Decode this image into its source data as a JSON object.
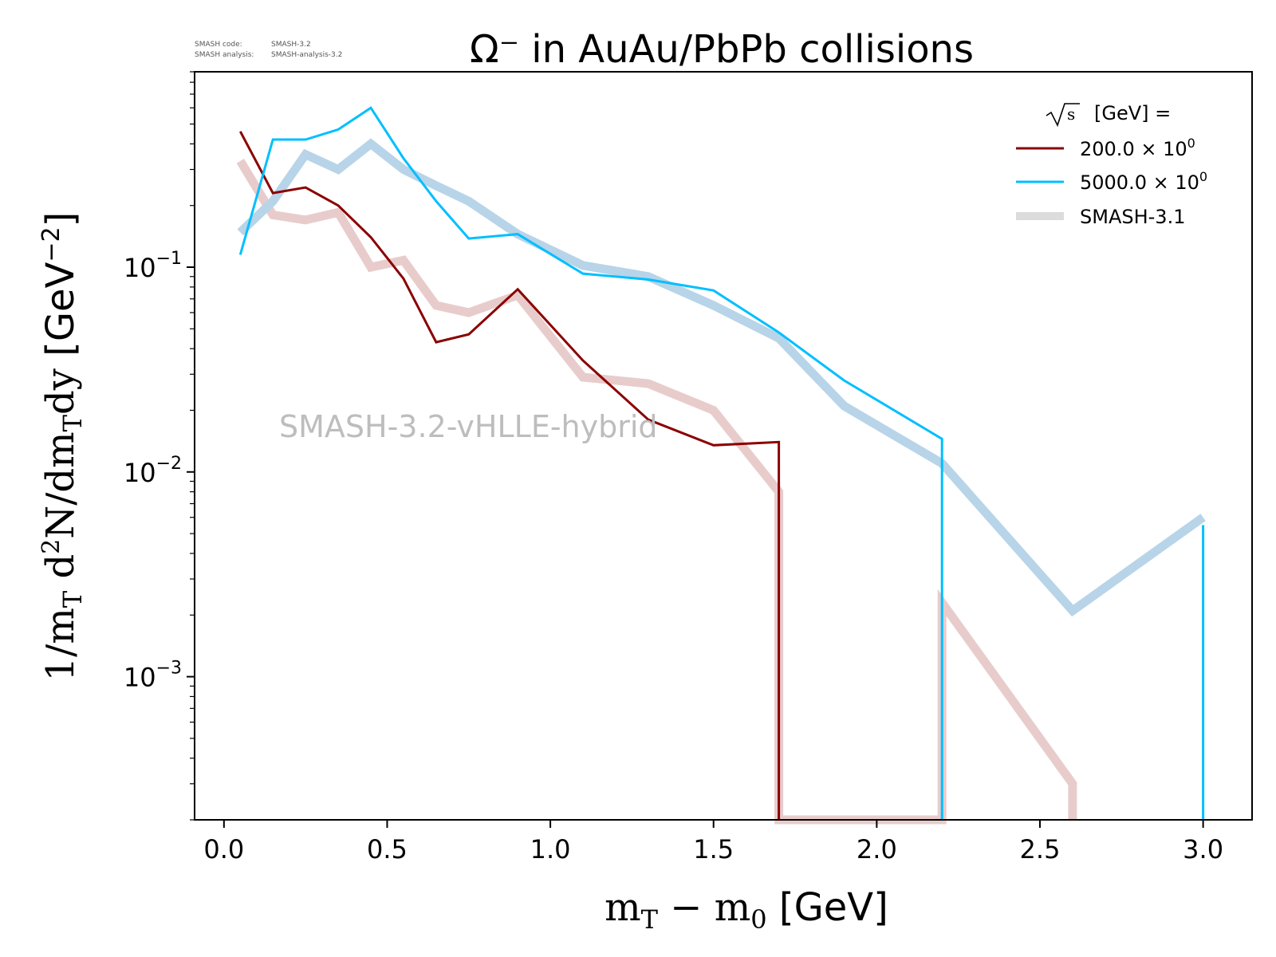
{
  "meta": {
    "code_label": "SMASH code:",
    "code_value": "SMASH-3.2",
    "analysis_label": "SMASH analysis:",
    "analysis_value": "SMASH-analysis-3.2"
  },
  "watermark": "SMASH-3.2-vHLLE-hybrid",
  "colors": {
    "series_200": "#8b0000",
    "series_5000": "#00bfff",
    "ref_200": "#e8cccc",
    "ref_5000": "#b8d4e8",
    "legend_ref": "#dcdcdc"
  },
  "chart_data": {
    "type": "line",
    "title": "Ω⁻ in AuAu/PbPb collisions",
    "xlabel": "m_T − m_0 [GeV]",
    "ylabel": "1/m_T d²N/dm_Tdy [GeV⁻²]",
    "xlim": [
      -0.09,
      3.15
    ],
    "ylim": [
      0.0002,
      0.9
    ],
    "yscale": "log",
    "grid": false,
    "legend_placement": "top-right",
    "legend_title": "√s [GeV] =",
    "x_ticks": [
      "0.0",
      "0.5",
      "1.0",
      "1.5",
      "2.0",
      "2.5",
      "3.0"
    ],
    "y_ticks": [
      {
        "base": "10",
        "exp": "−1",
        "value": 0.1
      },
      {
        "base": "10",
        "exp": "−2",
        "value": 0.01
      },
      {
        "base": "10",
        "exp": "−3",
        "value": 0.001
      }
    ],
    "series": [
      {
        "name": "200.0 × 10⁰",
        "legend_base": "200.0 × 10",
        "legend_exp": "0",
        "color": "#8b0000",
        "x": [
          0.05,
          0.15,
          0.25,
          0.35,
          0.45,
          0.55,
          0.65,
          0.75,
          0.9,
          1.1,
          1.3,
          1.5,
          1.7,
          1.7
        ],
        "y": [
          0.46,
          0.23,
          0.245,
          0.2,
          0.14,
          0.088,
          0.043,
          0.047,
          0.078,
          0.035,
          0.018,
          0.0135,
          0.014,
          0.0002
        ]
      },
      {
        "name": "5000.0 × 10⁰",
        "legend_base": "5000.0 × 10",
        "legend_exp": "0",
        "color": "#00bfff",
        "x": [
          0.05,
          0.15,
          0.25,
          0.35,
          0.45,
          0.55,
          0.65,
          0.75,
          0.9,
          1.1,
          1.3,
          1.5,
          1.7,
          1.9,
          2.2,
          2.2,
          2.2,
          3.0,
          3.0
        ],
        "y": [
          0.115,
          0.42,
          0.42,
          0.47,
          0.6,
          0.34,
          0.21,
          0.138,
          0.145,
          0.093,
          0.087,
          0.077,
          0.048,
          0.028,
          0.0145,
          0.0002,
          null,
          0.0055,
          0.0002
        ]
      },
      {
        "name": "SMASH-3.1",
        "role": "reference",
        "color": "#dcdcdc",
        "subseries": [
          {
            "color": "#e8cccc",
            "x": [
              0.05,
              0.15,
              0.25,
              0.35,
              0.45,
              0.55,
              0.65,
              0.75,
              0.9,
              1.1,
              1.3,
              1.5,
              1.7,
              1.7,
              2.2,
              2.2,
              2.6,
              2.6
            ],
            "y": [
              0.33,
              0.18,
              0.17,
              0.185,
              0.1,
              0.108,
              0.065,
              0.06,
              0.073,
              0.029,
              0.027,
              0.02,
              0.008,
              0.0002,
              0.0002,
              0.0023,
              0.0003,
              0.0002
            ]
          },
          {
            "color": "#b8d4e8",
            "x": [
              0.05,
              0.15,
              0.25,
              0.35,
              0.45,
              0.55,
              0.65,
              0.75,
              0.9,
              1.1,
              1.3,
              1.5,
              1.7,
              1.9,
              2.2,
              2.6,
              3.0
            ],
            "y": [
              0.148,
              0.21,
              0.355,
              0.3,
              0.4,
              0.3,
              0.25,
              0.21,
              0.145,
              0.102,
              0.09,
              0.065,
              0.045,
              0.021,
              0.011,
              0.0021,
              0.006
            ]
          }
        ]
      }
    ]
  }
}
